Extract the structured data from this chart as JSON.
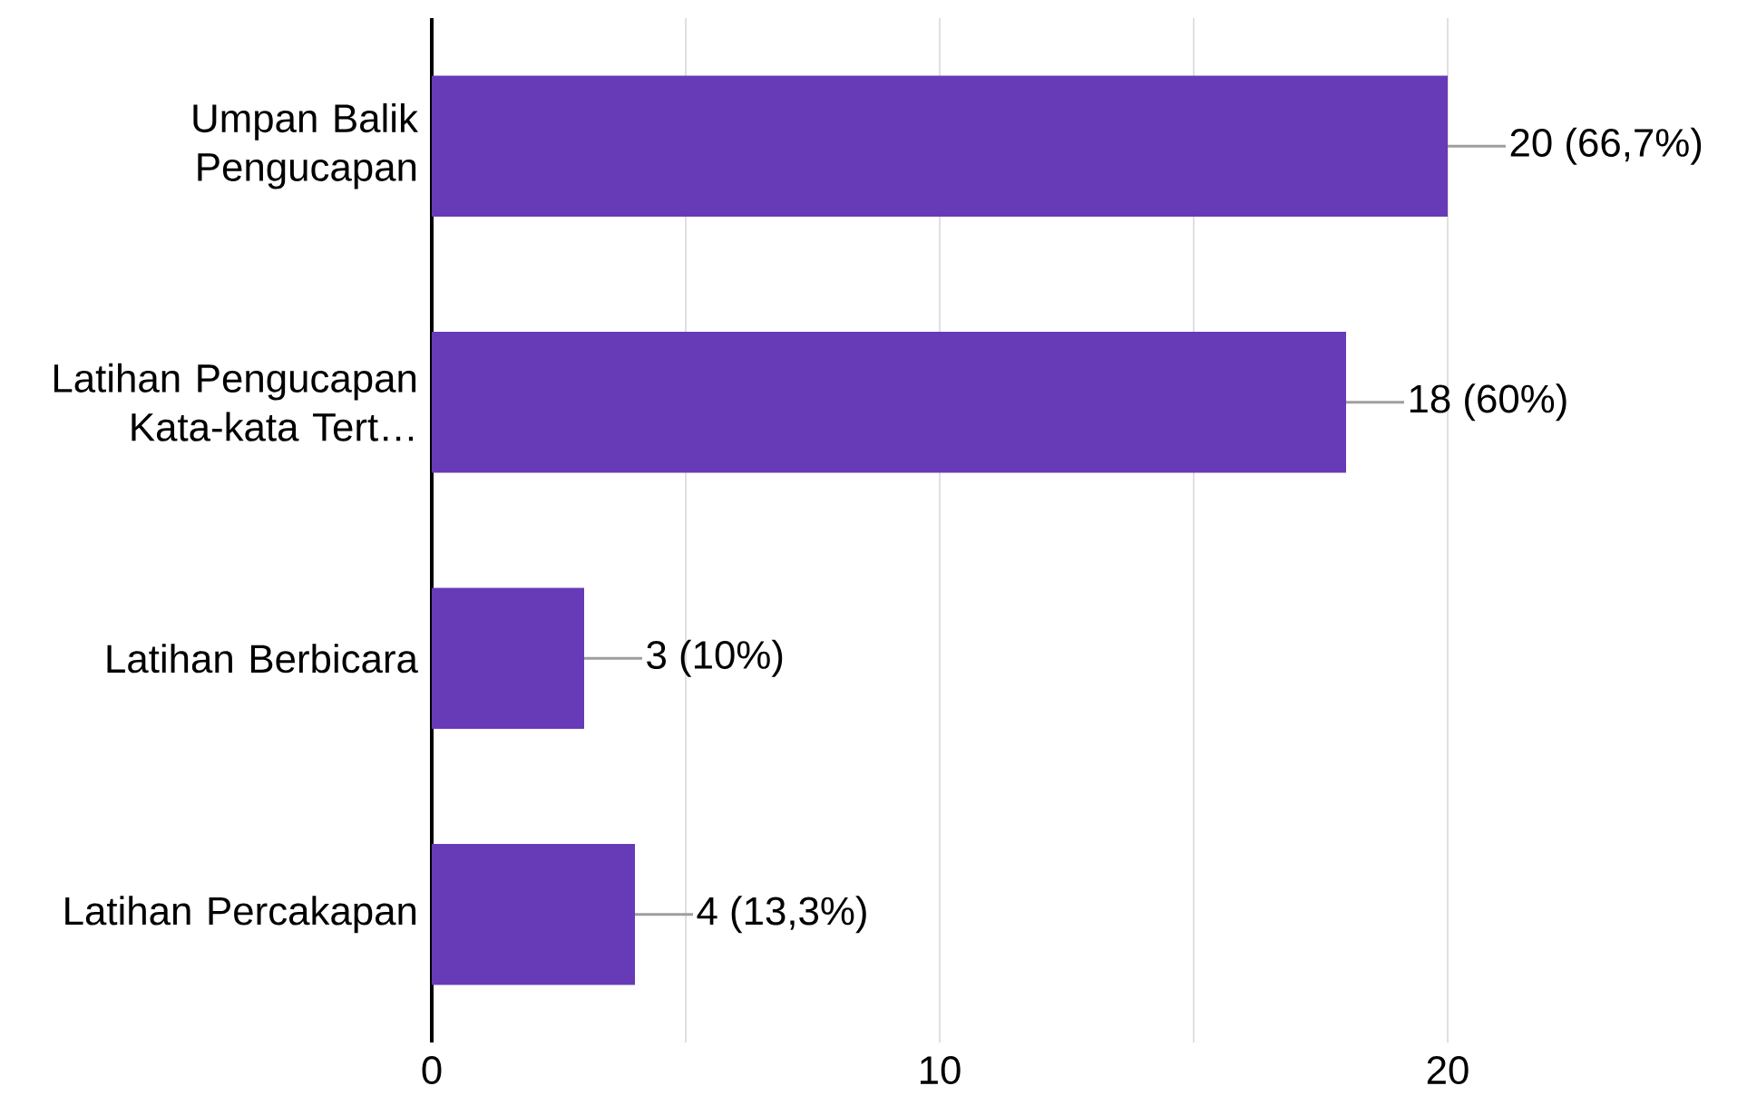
{
  "chart_data": {
    "type": "bar",
    "orientation": "horizontal",
    "categories": [
      "Umpan Balik Pengucapan",
      "Latihan Pengucapan Kata-kata Tert…",
      "Latihan Berbicara",
      "Latihan Percakapan"
    ],
    "values": [
      20,
      18,
      3,
      4
    ],
    "value_labels": [
      "20 (66,7%)",
      "18 (60%)",
      "3 (10%)",
      "4 (13,3%)"
    ],
    "color": "#673ab7",
    "xlim": [
      0,
      20
    ],
    "xticks": [
      0,
      {
        "value": 5,
        "label": null
      },
      10,
      {
        "value": 15,
        "label": null
      },
      20
    ],
    "grid": "x"
  }
}
